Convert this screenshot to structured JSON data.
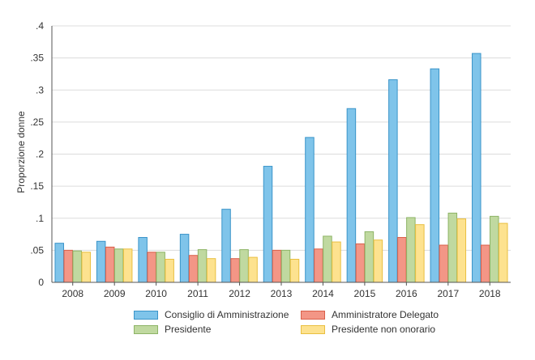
{
  "chart_data": {
    "type": "bar",
    "ylabel": "Proporzione donne",
    "ylim": [
      0,
      0.4
    ],
    "yticks": [
      0,
      0.05,
      0.1,
      0.15,
      0.2,
      0.25,
      0.3,
      0.35,
      0.4
    ],
    "ytick_labels": [
      "0",
      ".05",
      ".1",
      ".15",
      ".2",
      ".25",
      ".3",
      ".35",
      ".4"
    ],
    "grid": true,
    "legend_position": "bottom",
    "categories": [
      "2008",
      "2009",
      "2010",
      "2011",
      "2012",
      "2013",
      "2014",
      "2015",
      "2016",
      "2017",
      "2018"
    ],
    "series": [
      {
        "name": "Consiglio di Amministrazione",
        "color": "#7fc4ea",
        "edge": "#3a94c9",
        "values": [
          0.061,
          0.064,
          0.07,
          0.075,
          0.114,
          0.181,
          0.226,
          0.271,
          0.316,
          0.333,
          0.357
        ]
      },
      {
        "name": "Amministratore Delegato",
        "color": "#f39686",
        "edge": "#d9604a",
        "values": [
          0.05,
          0.055,
          0.047,
          0.042,
          0.037,
          0.05,
          0.052,
          0.06,
          0.07,
          0.058,
          0.058
        ]
      },
      {
        "name": "Presidente",
        "color": "#c0d9a0",
        "edge": "#8db466",
        "values": [
          0.049,
          0.052,
          0.047,
          0.051,
          0.051,
          0.05,
          0.072,
          0.079,
          0.101,
          0.108,
          0.103
        ]
      },
      {
        "name": "Presidente non onorario",
        "color": "#fde28f",
        "edge": "#e9bf40",
        "values": [
          0.047,
          0.052,
          0.036,
          0.037,
          0.039,
          0.036,
          0.063,
          0.066,
          0.09,
          0.099,
          0.092
        ]
      }
    ]
  }
}
